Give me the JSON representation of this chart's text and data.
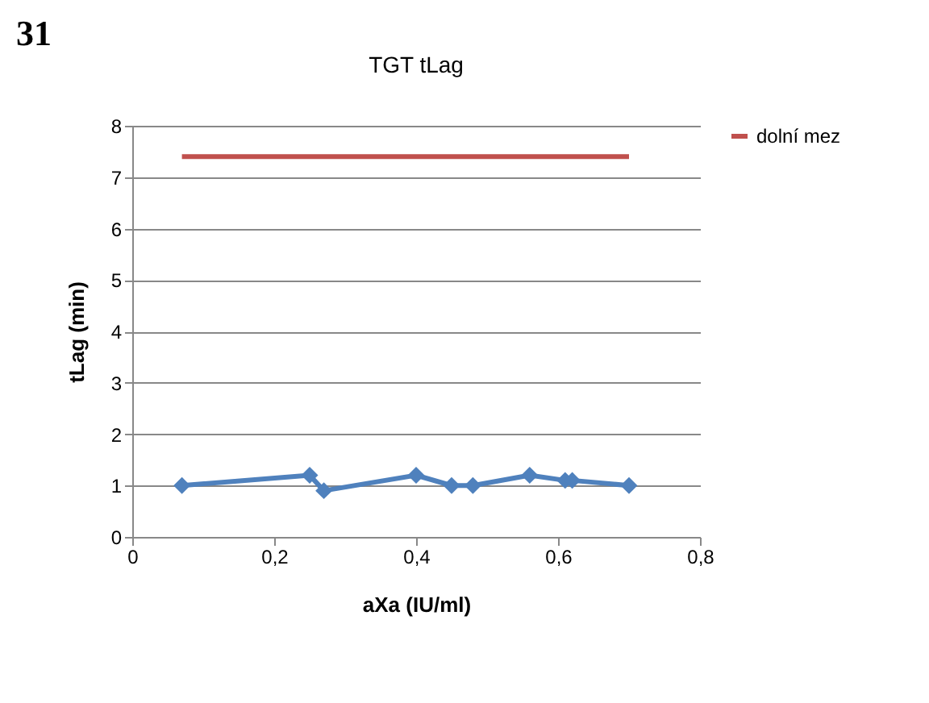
{
  "chart_data": {
    "type": "line",
    "title": "TGT tLag",
    "xlabel": "aXa (IU/ml)",
    "ylabel": "tLag (min)",
    "annotations": [
      "31"
    ],
    "series": [
      {
        "color": "#4f81bd",
        "marker": "diamond",
        "x": [
          0.07,
          0.25,
          0.27,
          0.4,
          0.45,
          0.48,
          0.56,
          0.61,
          0.62,
          0.7
        ],
        "values": [
          1.0,
          1.2,
          0.9,
          1.2,
          1.0,
          1.0,
          1.2,
          1.1,
          1.1,
          1.0
        ]
      },
      {
        "name": "dolní mez",
        "color": "#c0504d",
        "marker": "none",
        "x": [
          0.07,
          0.7
        ],
        "values": [
          7.4,
          7.4
        ]
      }
    ],
    "xlim": [
      0,
      0.8
    ],
    "xticks": [
      0,
      {
        "value": 0.2,
        "label": "0,2"
      },
      {
        "value": 0.4,
        "label": "0,4"
      },
      {
        "value": 0.6,
        "label": "0,6"
      },
      {
        "value": 0.8,
        "label": "0,8"
      }
    ],
    "ylim": [
      0,
      8
    ],
    "yticks": [
      0,
      1,
      2,
      3,
      4,
      5,
      6,
      7,
      8
    ],
    "grid": "y",
    "legend": "right"
  }
}
